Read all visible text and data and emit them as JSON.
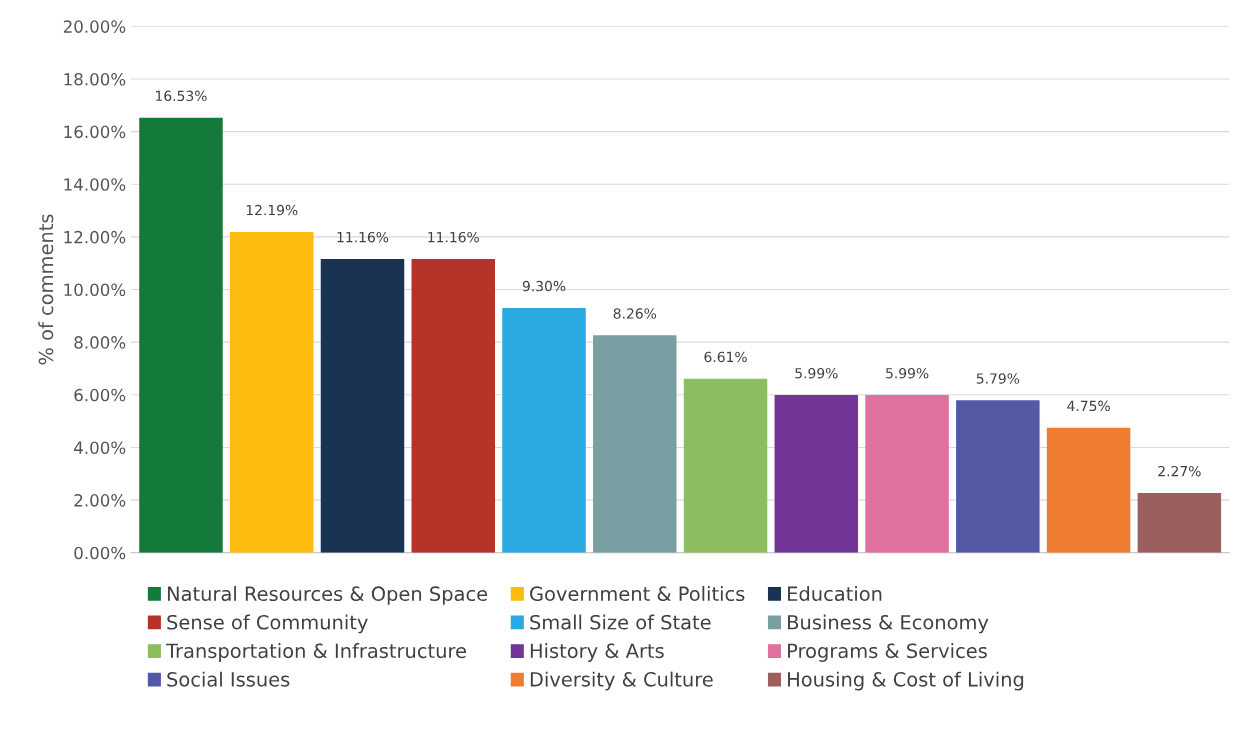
{
  "chart_data": {
    "type": "bar",
    "ylabel": "% of comments",
    "categories": [
      null,
      null,
      null,
      null,
      null,
      null,
      null,
      null,
      null,
      null,
      null,
      null
    ],
    "series": [
      {
        "name": "Natural Resources & Open Space",
        "color": "#147a3c",
        "values": [
          16.53,
          null,
          null,
          null,
          null,
          null,
          null,
          null,
          null,
          null,
          null,
          null
        ],
        "value_labels": [
          "16.53%",
          null,
          null,
          null,
          null,
          null,
          null,
          null,
          null,
          null,
          null,
          null
        ]
      },
      {
        "name": "Government & Politics",
        "color": "#fbbc0f",
        "values": [
          null,
          12.19,
          null,
          null,
          null,
          null,
          null,
          null,
          null,
          null,
          null,
          null
        ],
        "value_labels": [
          null,
          "12.19%",
          null,
          null,
          null,
          null,
          null,
          null,
          null,
          null,
          null,
          null
        ]
      },
      {
        "name": "Education",
        "color": "#1b3352",
        "values": [
          null,
          null,
          11.16,
          null,
          null,
          null,
          null,
          null,
          null,
          null,
          null,
          null
        ],
        "value_labels": [
          null,
          null,
          "11.16%",
          null,
          null,
          null,
          null,
          null,
          null,
          null,
          null,
          null
        ]
      },
      {
        "name": "Sense of Community",
        "color": "#b5342a",
        "values": [
          null,
          null,
          null,
          11.16,
          null,
          null,
          null,
          null,
          null,
          null,
          null,
          null
        ],
        "value_labels": [
          null,
          null,
          null,
          "11.16%",
          null,
          null,
          null,
          null,
          null,
          null,
          null,
          null
        ]
      },
      {
        "name": "Small Size of State",
        "color": "#29abe2",
        "values": [
          null,
          null,
          null,
          null,
          9.3,
          null,
          null,
          null,
          null,
          null,
          null,
          null
        ],
        "value_labels": [
          null,
          null,
          null,
          null,
          "9.30%",
          null,
          null,
          null,
          null,
          null,
          null,
          null
        ]
      },
      {
        "name": "Business & Economy",
        "color": "#7a9fa3",
        "values": [
          null,
          null,
          null,
          null,
          null,
          8.26,
          null,
          null,
          null,
          null,
          null,
          null
        ],
        "value_labels": [
          null,
          null,
          null,
          null,
          null,
          "8.26%",
          null,
          null,
          null,
          null,
          null,
          null
        ]
      },
      {
        "name": "Transportation & Infrastructure",
        "color": "#8cbd5e",
        "values": [
          null,
          null,
          null,
          null,
          null,
          null,
          6.61,
          null,
          null,
          null,
          null,
          null
        ],
        "value_labels": [
          null,
          null,
          null,
          null,
          null,
          null,
          "6.61%",
          null,
          null,
          null,
          null,
          null
        ]
      },
      {
        "name": "History & Arts",
        "color": "#733597",
        "values": [
          null,
          null,
          null,
          null,
          null,
          null,
          null,
          5.99,
          null,
          null,
          null,
          null
        ],
        "value_labels": [
          null,
          null,
          null,
          null,
          null,
          null,
          null,
          "5.99%",
          null,
          null,
          null,
          null
        ]
      },
      {
        "name": "Programs & Services",
        "color": "#e070a0",
        "values": [
          null,
          null,
          null,
          null,
          null,
          null,
          null,
          null,
          5.99,
          null,
          null,
          null
        ],
        "value_labels": [
          null,
          null,
          null,
          null,
          null,
          null,
          null,
          null,
          "5.99%",
          null,
          null,
          null
        ]
      },
      {
        "name": "Social Issues",
        "color": "#5459a6",
        "values": [
          null,
          null,
          null,
          null,
          null,
          null,
          null,
          null,
          null,
          5.79,
          null,
          null
        ],
        "value_labels": [
          null,
          null,
          null,
          null,
          null,
          null,
          null,
          null,
          null,
          "5.79%",
          null,
          null
        ]
      },
      {
        "name": "Diversity & Culture",
        "color": "#ee7d31",
        "values": [
          null,
          null,
          null,
          null,
          null,
          null,
          null,
          null,
          null,
          null,
          4.75,
          null
        ],
        "value_labels": [
          null,
          null,
          null,
          null,
          null,
          null,
          null,
          null,
          null,
          null,
          "4.75%",
          null
        ]
      },
      {
        "name": "Housing & Cost of Living",
        "color": "#9b5f5e",
        "values": [
          null,
          null,
          null,
          null,
          null,
          null,
          null,
          null,
          null,
          null,
          null,
          2.27
        ],
        "value_labels": [
          null,
          null,
          null,
          null,
          null,
          null,
          null,
          null,
          null,
          null,
          null,
          "2.27%"
        ]
      }
    ],
    "ylim": [
      0,
      20
    ],
    "yticks": [
      {
        "value": 0,
        "label": "0.00%"
      },
      {
        "value": 2,
        "label": "2.00%"
      },
      {
        "value": 4,
        "label": "4.00%"
      },
      {
        "value": 6,
        "label": "6.00%"
      },
      {
        "value": 8,
        "label": "8.00%"
      },
      {
        "value": 10,
        "label": "10.00%"
      },
      {
        "value": 12,
        "label": "12.00%"
      },
      {
        "value": 14,
        "label": "14.00%"
      },
      {
        "value": 16,
        "label": "16.00%"
      },
      {
        "value": 18,
        "label": "18.00%"
      },
      {
        "value": 20,
        "label": "20.00%"
      }
    ],
    "grid": "y",
    "legend": "bottom",
    "tick_labels": "y"
  }
}
